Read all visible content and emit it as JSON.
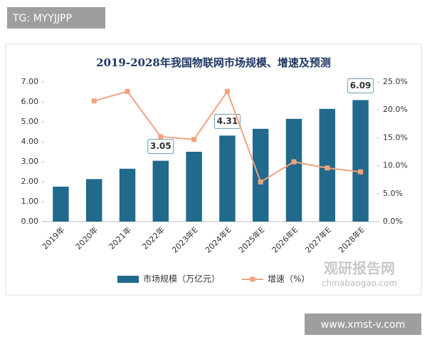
{
  "chart_data": {
    "type": "bar",
    "title": "2019-2028年我国物联网市场规模、增速及预测",
    "categories": [
      "2019年",
      "2020年",
      "2021年",
      "2022年",
      "2023年E",
      "2024年E",
      "2025年E",
      "2026年E",
      "2027年E",
      "2028年E"
    ],
    "series": [
      {
        "name": "市场规模（万亿元）",
        "color": "#216a8c",
        "type": "bar",
        "values": [
          1.75,
          2.13,
          2.65,
          3.05,
          3.5,
          4.31,
          4.65,
          5.15,
          5.65,
          6.09
        ],
        "value_labels": [
          null,
          null,
          null,
          "3.05",
          null,
          "4.31",
          null,
          null,
          null,
          "6.09"
        ]
      },
      {
        "name": "增速（%）",
        "color": "#f0a37f",
        "type": "line",
        "axis": "y2",
        "values": [
          null,
          21.6,
          23.3,
          15.2,
          14.7,
          23.3,
          7.1,
          10.7,
          9.6,
          8.9
        ]
      }
    ],
    "ylim": [
      0,
      7
    ],
    "yticks": [
      {
        "value": 0,
        "label": "0.00"
      },
      {
        "value": 1,
        "label": "1.00"
      },
      {
        "value": 2,
        "label": "2.00"
      },
      {
        "value": 3,
        "label": "3.00"
      },
      {
        "value": 4,
        "label": "4.00"
      },
      {
        "value": 5,
        "label": "5.00"
      },
      {
        "value": 6,
        "label": "6.00"
      },
      {
        "value": 7,
        "label": "7.00"
      }
    ],
    "y2lim": [
      0,
      25
    ],
    "y2ticks": [
      {
        "value": 0,
        "label": "0.0%"
      },
      {
        "value": 5,
        "label": "5.0%"
      },
      {
        "value": 10,
        "label": "10.0%"
      },
      {
        "value": 15,
        "label": "15.0%"
      },
      {
        "value": 20,
        "label": "20.0%"
      },
      {
        "value": 25,
        "label": "25.0%"
      }
    ],
    "legend": "bottom",
    "watermarks": [
      "TG: MYYJJPP",
      "观研报告网",
      "chinabaogao.com",
      "www.xmst-v.com"
    ]
  }
}
